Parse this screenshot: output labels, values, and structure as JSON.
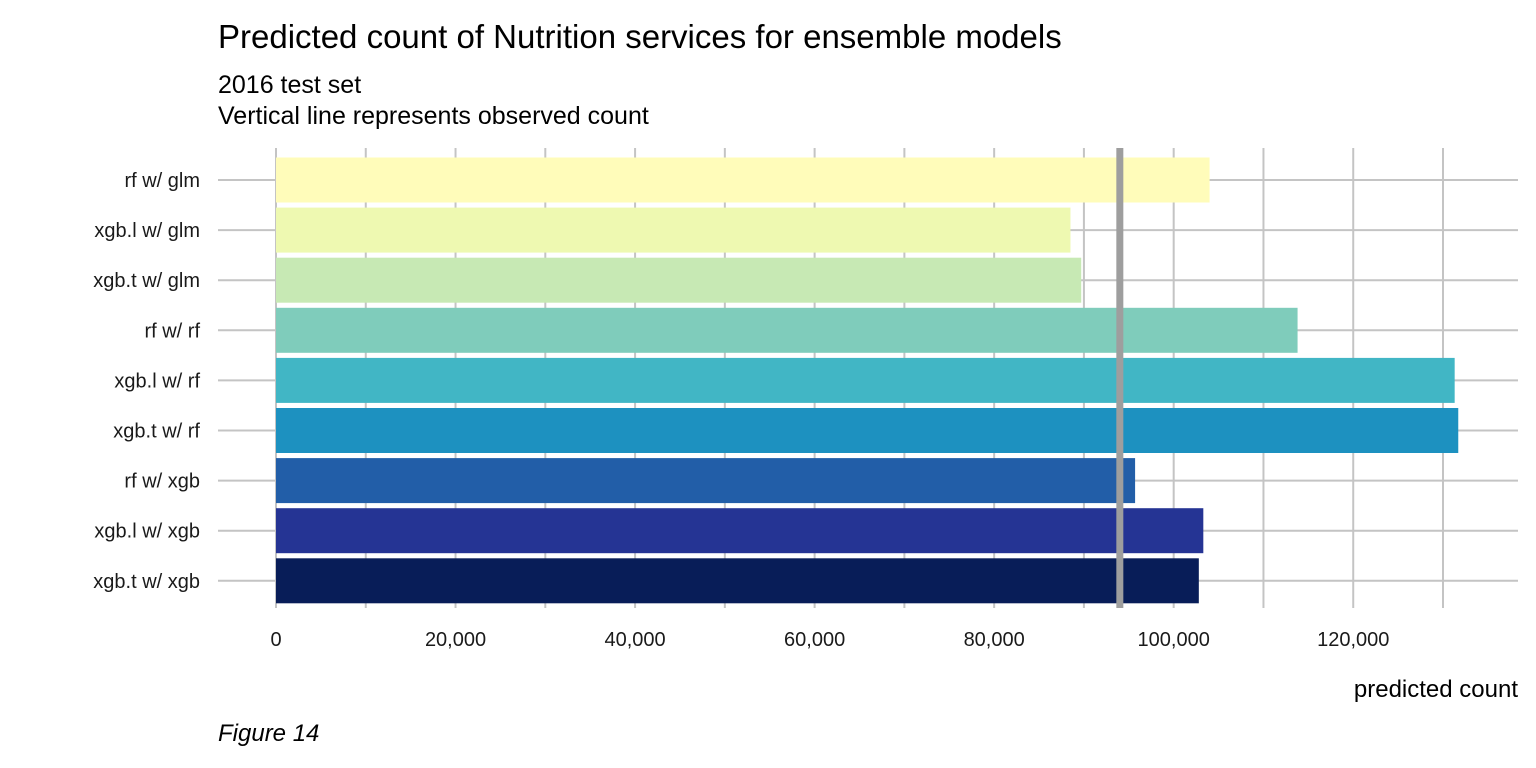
{
  "chart_data": {
    "type": "bar",
    "orientation": "horizontal",
    "title": "Predicted count of Nutrition services for ensemble models",
    "subtitle_lines": [
      "2016 test set",
      "Vertical line represents observed count"
    ],
    "xlabel": "predicted count",
    "ylabel": "",
    "caption": "Figure 14",
    "categories": [
      "rf w/ glm",
      "xgb.l w/ glm",
      "xgb.t w/ glm",
      "rf w/ rf",
      "xgb.l w/ rf",
      "xgb.t w/ rf",
      "rf w/ xgb",
      "xgb.l w/ xgb",
      "xgb.t w/ xgb"
    ],
    "values": [
      104000,
      88500,
      89700,
      113800,
      131300,
      131700,
      95700,
      103300,
      102800
    ],
    "colors": [
      "#FFFCBA",
      "#EEF9B1",
      "#C7E9B4",
      "#7FCCBB",
      "#41B6C5",
      "#1D91C0",
      "#225EA8",
      "#253494",
      "#081D58"
    ],
    "observed_count": 94000,
    "xlim": [
      0,
      135000
    ],
    "xticks": [
      0,
      20000,
      40000,
      60000,
      80000,
      100000,
      120000
    ],
    "xtick_labels": [
      "0",
      "20,000",
      "40,000",
      "60,000",
      "80,000",
      "100,000",
      "120,000"
    ],
    "grid": true,
    "legend": "none"
  }
}
